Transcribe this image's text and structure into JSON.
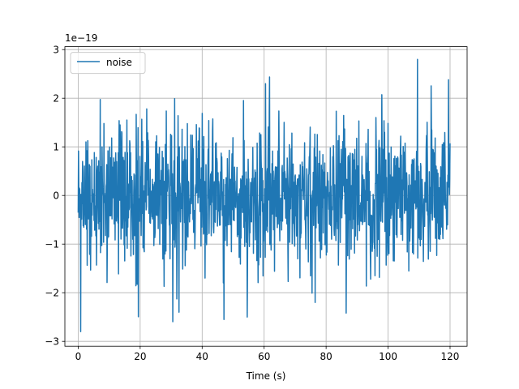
{
  "chart_data": {
    "type": "line",
    "title": "",
    "xlabel": "Time (s)",
    "ylabel": "",
    "y_offset_text": "1e−19",
    "xlim": [
      -4.3,
      125.5
    ],
    "ylim": [
      -3.1,
      3.06
    ],
    "x_ticks": [
      0,
      20,
      40,
      60,
      80,
      100,
      120
    ],
    "x_tick_labels": [
      "0",
      "20",
      "40",
      "60",
      "80",
      "100",
      "120"
    ],
    "y_ticks": [
      -3,
      -2,
      -1,
      0,
      1,
      2,
      3
    ],
    "y_tick_labels": [
      "−3",
      "−2",
      "−1",
      "0",
      "1",
      "2",
      "3"
    ],
    "grid": true,
    "legend_position": "upper-left",
    "series": [
      {
        "name": "noise",
        "color": "#1f77b4",
        "x_range": [
          0,
          120
        ],
        "sample_count": 1200,
        "y_min": -2.8,
        "y_max": 2.8,
        "y_typical_abs": 1.0,
        "peaks": [
          {
            "x": 0.8,
            "y": -2.8
          },
          {
            "x": 32.5,
            "y": -2.4
          },
          {
            "x": 47,
            "y": -2.55
          },
          {
            "x": 54.5,
            "y": -2.5
          },
          {
            "x": 60.5,
            "y": 2.3
          },
          {
            "x": 76.5,
            "y": -2.2
          },
          {
            "x": 109.5,
            "y": 2.8
          },
          {
            "x": 119.5,
            "y": 2.38
          }
        ]
      }
    ]
  }
}
